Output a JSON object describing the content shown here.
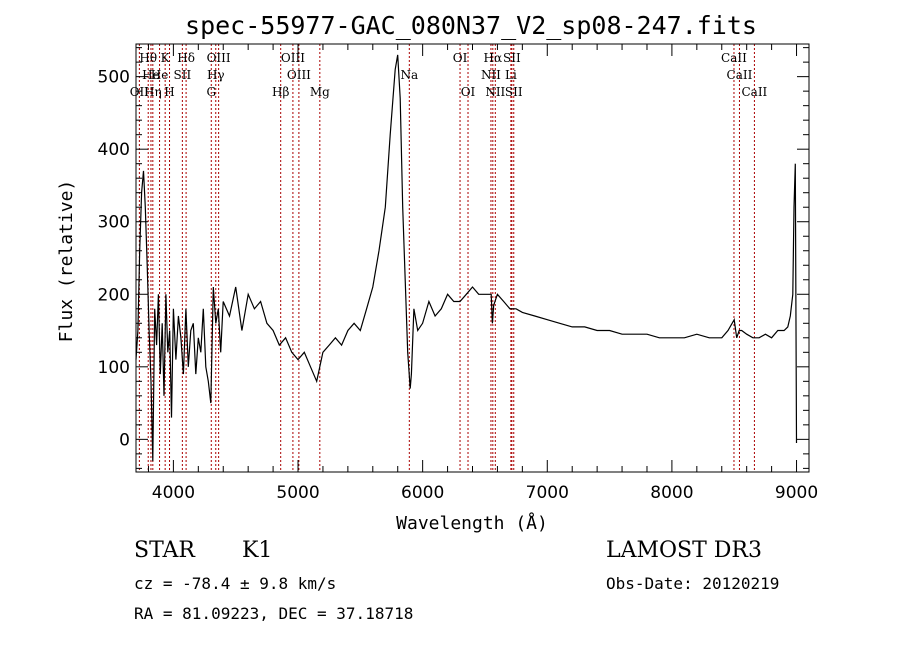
{
  "chart_data": {
    "type": "line",
    "title": "spec-55977-GAC_080N37_V2_sp08-247.fits",
    "xlabel": "Wavelength (Å)",
    "ylabel": "Flux (relative)",
    "xlim": [
      3700,
      9100
    ],
    "ylim": [
      -45,
      545
    ],
    "xticks": [
      4000,
      5000,
      6000,
      7000,
      8000,
      9000
    ],
    "yticks": [
      0,
      100,
      200,
      300,
      400,
      500
    ],
    "line_color": "#000000",
    "marker_color": "#aa0000",
    "series": [
      {
        "x": [
          3700,
          3715,
          3730,
          3745,
          3760,
          3775,
          3790,
          3805,
          3820,
          3835,
          3850,
          3865,
          3880,
          3895,
          3910,
          3925,
          3940,
          3955,
          3970,
          3985,
          4000,
          4020,
          4040,
          4060,
          4080,
          4100,
          4120,
          4140,
          4160,
          4180,
          4200,
          4220,
          4240,
          4260,
          4280,
          4300,
          4320,
          4340,
          4360,
          4380,
          4400,
          4450,
          4500,
          4550,
          4600,
          4650,
          4700,
          4750,
          4800,
          4850,
          4900,
          4950,
          5000,
          5050,
          5100,
          5150,
          5200,
          5250,
          5300,
          5350,
          5400,
          5450,
          5500,
          5550,
          5600,
          5650,
          5700,
          5740,
          5780,
          5800,
          5820,
          5840,
          5860,
          5880,
          5900,
          5910,
          5930,
          5960,
          6000,
          6050,
          6100,
          6150,
          6200,
          6250,
          6300,
          6350,
          6400,
          6450,
          6500,
          6550,
          6560,
          6570,
          6600,
          6650,
          6700,
          6750,
          6800,
          6900,
          7000,
          7100,
          7200,
          7300,
          7400,
          7500,
          7600,
          7700,
          7800,
          7900,
          8000,
          8100,
          8200,
          8300,
          8400,
          8450,
          8500,
          8520,
          8540,
          8560,
          8600,
          8650,
          8700,
          8750,
          8800,
          8850,
          8900,
          8930,
          8950,
          8970,
          8980,
          8990,
          9000
        ],
        "y": [
          110,
          150,
          260,
          340,
          370,
          320,
          240,
          150,
          80,
          -30,
          180,
          130,
          200,
          90,
          160,
          60,
          200,
          120,
          150,
          30,
          180,
          110,
          170,
          140,
          90,
          180,
          100,
          150,
          160,
          90,
          140,
          120,
          180,
          100,
          80,
          50,
          210,
          160,
          180,
          120,
          190,
          170,
          210,
          150,
          200,
          180,
          190,
          160,
          150,
          130,
          140,
          120,
          110,
          120,
          100,
          80,
          120,
          130,
          140,
          130,
          150,
          160,
          150,
          180,
          210,
          260,
          320,
          420,
          510,
          530,
          470,
          320,
          220,
          120,
          70,
          90,
          180,
          150,
          160,
          190,
          170,
          180,
          200,
          190,
          190,
          200,
          210,
          200,
          200,
          200,
          160,
          185,
          200,
          190,
          180,
          180,
          175,
          170,
          165,
          160,
          155,
          155,
          150,
          150,
          145,
          145,
          145,
          140,
          140,
          140,
          145,
          140,
          140,
          150,
          165,
          140,
          150,
          150,
          145,
          140,
          140,
          145,
          140,
          150,
          150,
          155,
          170,
          200,
          320,
          380,
          -5
        ]
      }
    ],
    "line_markers": [
      {
        "name": "Hθ",
        "x": 3798,
        "row": 1
      },
      {
        "name": "K",
        "x": 3934,
        "row": 1
      },
      {
        "name": "Hδ",
        "x": 4102,
        "row": 1
      },
      {
        "name": "OIII",
        "x": 4363,
        "row": 1
      },
      {
        "name": "OIII",
        "x": 4959,
        "row": 1
      },
      {
        "name": "OI",
        "x": 6300,
        "row": 1
      },
      {
        "name": "Hα",
        "x": 6563,
        "row": 1
      },
      {
        "name": "SII",
        "x": 6716,
        "row": 1
      },
      {
        "name": "CaII",
        "x": 8498,
        "row": 1
      },
      {
        "name": "He",
        "x": 3820,
        "row": 2
      },
      {
        "name": "He",
        "x": 3889,
        "row": 2
      },
      {
        "name": "SII",
        "x": 4072,
        "row": 2
      },
      {
        "name": "Hγ",
        "x": 4340,
        "row": 2
      },
      {
        "name": "OIII",
        "x": 5007,
        "row": 2
      },
      {
        "name": "Na",
        "x": 5893,
        "row": 2
      },
      {
        "name": "NII",
        "x": 6548,
        "row": 2
      },
      {
        "name": "Li",
        "x": 6708,
        "row": 2
      },
      {
        "name": "CaII",
        "x": 8542,
        "row": 2
      },
      {
        "name": "OII",
        "x": 3727,
        "row": 3
      },
      {
        "name": "Hη",
        "x": 3835,
        "row": 3
      },
      {
        "name": "H",
        "x": 3969,
        "row": 3
      },
      {
        "name": "G",
        "x": 4304,
        "row": 3
      },
      {
        "name": "Hβ",
        "x": 4861,
        "row": 3
      },
      {
        "name": "Mg",
        "x": 5175,
        "row": 3
      },
      {
        "name": "OI",
        "x": 6364,
        "row": 3
      },
      {
        "name": "NII",
        "x": 6583,
        "row": 3
      },
      {
        "name": "SII",
        "x": 6731,
        "row": 3
      },
      {
        "name": "CaII",
        "x": 8662,
        "row": 3
      }
    ]
  },
  "footer": {
    "object_type": "STAR",
    "subclass": "K1",
    "survey": "LAMOST DR3",
    "redshift": "cz = -78.4 ± 9.8 km/s",
    "obs_date": "Obs-Date: 20120219",
    "coords": "RA =  81.09223, DEC =  37.18718"
  }
}
